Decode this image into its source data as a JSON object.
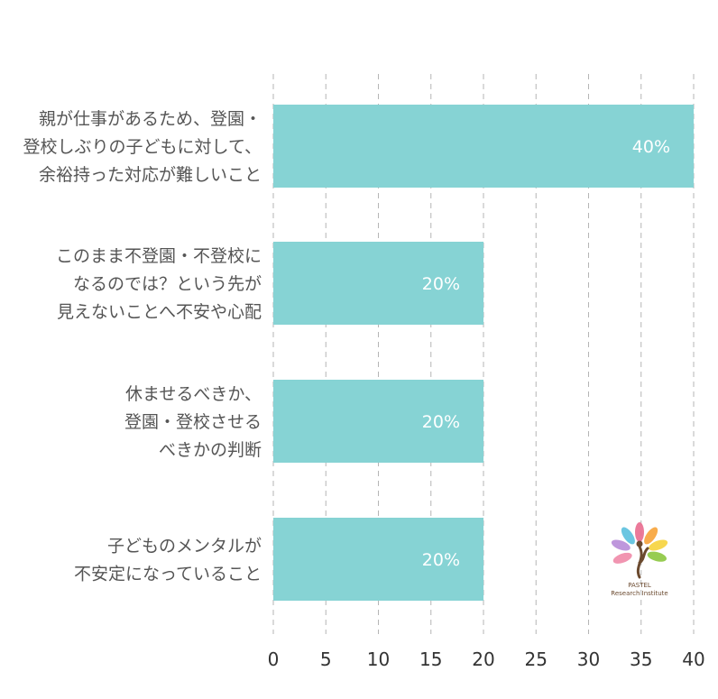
{
  "chart_data": {
    "type": "bar",
    "orientation": "horizontal",
    "categories": [
      [
        "親が仕事があるため、登園・",
        "登校しぶりの子どもに対して、",
        "余裕持った対応が難しいこと"
      ],
      [
        "このまま不登園・不登校に",
        "なるのでは？という先が",
        "見えないことへ不安や心配"
      ],
      [
        "休ませるべきか、",
        "登園・登校させる",
        "べきかの判断"
      ],
      [
        "子どものメンタルが",
        "不安定になっていること"
      ]
    ],
    "values": [
      40,
      20,
      20,
      20
    ],
    "data_labels": [
      "40%",
      "20%",
      "20%",
      "20%"
    ],
    "xlim": [
      0,
      40
    ],
    "x_ticks": [
      "0",
      "5",
      "10",
      "15",
      "20",
      "25",
      "30",
      "35",
      "40"
    ],
    "grid": "vertical dashed",
    "bar_color": "#86d3d4"
  },
  "logo": {
    "line1": "PASTEL",
    "line2": "Research Institute",
    "petal_colors": [
      "#e96b8f",
      "#f7a33a",
      "#f6d33c",
      "#8cc63f",
      "#5bc0de",
      "#b78cd8",
      "#f08aa8"
    ]
  }
}
